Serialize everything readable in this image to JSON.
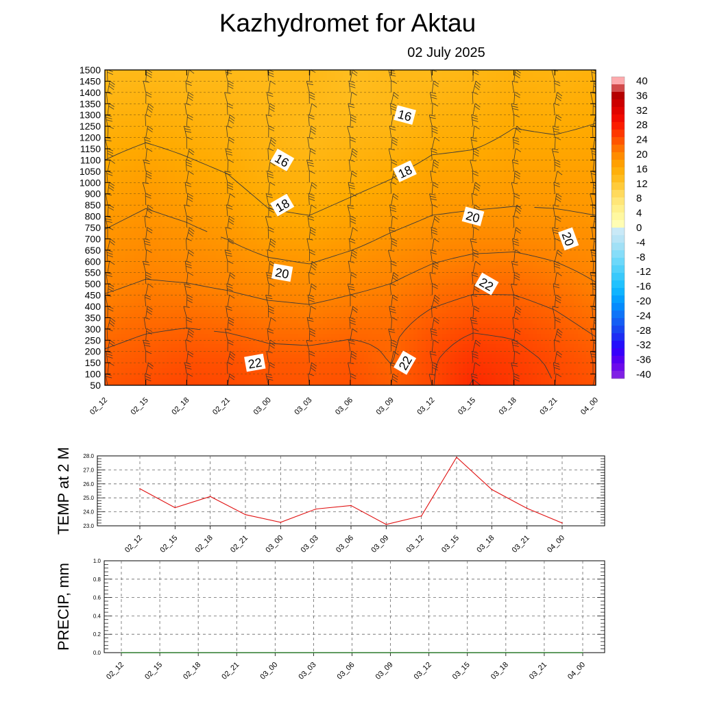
{
  "header": {
    "title": "Kazhydromet  for Aktau",
    "date": "02 July 2025"
  },
  "colors": {
    "temp_line": "#e01010",
    "precip_line": "#2a7a2a",
    "contour": "#3a3a3a",
    "barb": "#303030"
  },
  "chart_data": [
    {
      "type": "heatmap",
      "name": "temperature-wind-cross-section",
      "x_labels": [
        "02_12",
        "02_15",
        "02_18",
        "02_21",
        "03_00",
        "03_03",
        "03_06",
        "03_09",
        "03_12",
        "03_15",
        "03_18",
        "03_21",
        "04_00"
      ],
      "y_labels": [
        "1500",
        "1450",
        "1400",
        "1350",
        "1300",
        "1250",
        "1200",
        "1150",
        "1100",
        "1050",
        "1000",
        "900",
        "850",
        "800",
        "750",
        "700",
        "650",
        "600",
        "550",
        "500",
        "450",
        "400",
        "350",
        "300",
        "250",
        "200",
        "150",
        "100",
        "50"
      ],
      "colorbar": {
        "labels": [
          "40",
          "36",
          "32",
          "28",
          "24",
          "20",
          "16",
          "12",
          "8",
          "4",
          "0",
          "-4",
          "-8",
          "-12",
          "-16",
          "-20",
          "-24",
          "-28",
          "-32",
          "-36",
          "-40"
        ],
        "min": -40,
        "max": 40,
        "step": 2
      },
      "field_temperature_C": [
        [
          13.4,
          13.6,
          13.5,
          13.6,
          13.5,
          13.7,
          12.8,
          13.5,
          13.5,
          14.0,
          14.6,
          14.4,
          14.8
        ],
        [
          14.1,
          14.4,
          14.2,
          14.0,
          13.8,
          13.7,
          13.2,
          13.7,
          14.2,
          14.6,
          15.2,
          15.0,
          15.4
        ],
        [
          14.8,
          15.2,
          14.9,
          14.5,
          14.1,
          13.7,
          13.7,
          13.9,
          14.9,
          15.2,
          15.8,
          15.6,
          15.9
        ],
        [
          15.5,
          16.0,
          15.6,
          15.1,
          14.4,
          13.8,
          14.3,
          14.7,
          15.6,
          15.8,
          16.3,
          16.2,
          16.4
        ],
        [
          16.2,
          16.8,
          16.3,
          15.8,
          14.8,
          14.5,
          15.0,
          15.6,
          16.4,
          16.5,
          16.8,
          16.8,
          16.9
        ],
        [
          16.9,
          17.5,
          17.0,
          16.5,
          15.5,
          15.2,
          15.8,
          16.4,
          17.2,
          17.3,
          17.5,
          17.5,
          17.4
        ],
        [
          17.6,
          18.2,
          17.8,
          17.2,
          16.2,
          16.0,
          16.6,
          17.3,
          18.0,
          18.2,
          18.3,
          18.2,
          18.0
        ],
        [
          18.3,
          18.9,
          18.5,
          18.0,
          17.2,
          16.9,
          17.5,
          18.3,
          19.0,
          19.3,
          19.4,
          19.1,
          18.7
        ],
        [
          19.0,
          19.5,
          19.3,
          18.9,
          18.3,
          18.0,
          18.6,
          19.2,
          20.0,
          20.5,
          20.6,
          20.1,
          19.4
        ],
        [
          19.8,
          20.3,
          20.2,
          19.9,
          19.4,
          19.2,
          19.7,
          20.2,
          21.1,
          21.7,
          21.7,
          21.1,
          20.2
        ],
        [
          20.7,
          21.2,
          21.3,
          21.0,
          20.6,
          20.4,
          20.8,
          21.1,
          22.2,
          22.9,
          22.8,
          22.1,
          21.1
        ],
        [
          21.6,
          22.1,
          22.4,
          22.2,
          21.7,
          21.6,
          21.9,
          21.7,
          23.2,
          24.2,
          23.9,
          23.0,
          22.0
        ],
        [
          22.4,
          22.9,
          23.4,
          23.3,
          22.8,
          22.7,
          22.9,
          21.9,
          23.8,
          25.4,
          24.7,
          23.7,
          22.8
        ],
        [
          23.0,
          23.6,
          24.0,
          23.8,
          23.3,
          23.1,
          23.4,
          22.6,
          23.9,
          26.2,
          25.1,
          24.0,
          23.2
        ]
      ],
      "contour_levels": [
        16,
        18,
        20,
        22,
        24,
        26
      ],
      "contour_labels": [
        {
          "text": "16",
          "x": "03_01",
          "y": 1100
        },
        {
          "text": "18",
          "x": "03_01",
          "y": 850
        },
        {
          "text": "20",
          "x": "03_01",
          "y": 550
        },
        {
          "text": "22",
          "x": "02_23",
          "y": 150
        },
        {
          "text": "16",
          "x": "03_10",
          "y": 1300
        },
        {
          "text": "18",
          "x": "03_10",
          "y": 1050
        },
        {
          "text": "22",
          "x": "03_10",
          "y": 150
        },
        {
          "text": "20",
          "x": "03_15",
          "y": 800
        },
        {
          "text": "22",
          "x": "03_16",
          "y": 500
        },
        {
          "text": "20",
          "x": "03_22",
          "y": 700
        }
      ]
    },
    {
      "type": "line",
      "name": "temp-2m",
      "ylabel": "TEMP at 2 M",
      "x": [
        "02_12",
        "02_15",
        "02_18",
        "02_21",
        "03_00",
        "03_03",
        "03_06",
        "03_09",
        "03_12",
        "03_15",
        "03_18",
        "03_21",
        "04_00"
      ],
      "series": [
        {
          "values": [
            25.65,
            24.3,
            25.1,
            23.8,
            23.25,
            24.2,
            24.45,
            23.1,
            23.7,
            27.9,
            25.6,
            24.25,
            23.2
          ]
        }
      ],
      "ylim": [
        23.0,
        28.0
      ],
      "yticks": [
        "28.0",
        "27.0",
        "26.0",
        "25.0",
        "24.0",
        "23.0"
      ],
      "grid": true
    },
    {
      "type": "line",
      "name": "precipitation",
      "ylabel": "PRECIP, mm",
      "x": [
        "02_12",
        "02_15",
        "02_18",
        "02_21",
        "03_00",
        "03_03",
        "03_06",
        "03_09",
        "03_12",
        "03_15",
        "03_18",
        "03_21",
        "04_00"
      ],
      "series": [
        {
          "values": [
            0,
            0,
            0,
            0,
            0,
            0,
            0,
            0,
            0,
            0,
            0,
            0,
            0
          ]
        }
      ],
      "ylim": [
        0.0,
        1.0
      ],
      "yticks": [
        "1.0",
        "0.8",
        "0.6",
        "0.4",
        "0.2",
        "0.0"
      ],
      "grid": true
    }
  ]
}
